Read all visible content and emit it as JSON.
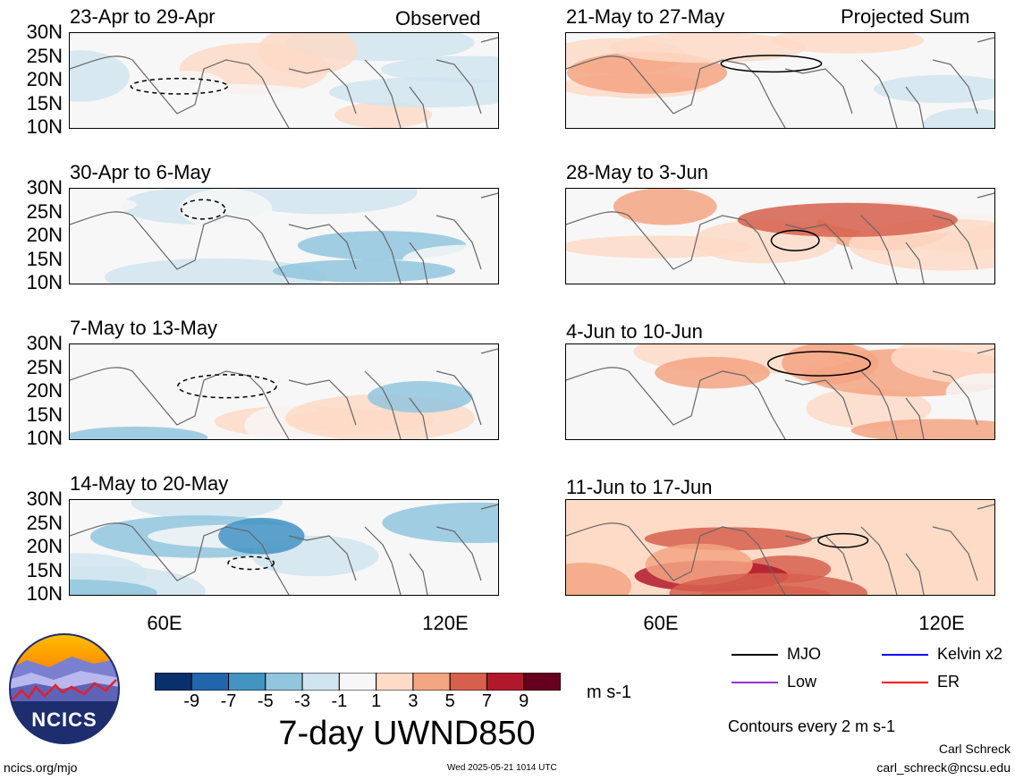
{
  "chart_data": {
    "type": "heatmap",
    "title": "7-day UWND850",
    "units": "m s-1",
    "contour_note": "Contours every 2 m s-1",
    "lat_ticks": [
      "30N",
      "25N",
      "20N",
      "15N",
      "10N"
    ],
    "lon_ticks": [
      "60E",
      "120E"
    ],
    "lat_range": [
      10,
      30
    ],
    "lon_range": [
      40,
      130
    ],
    "column_tags": {
      "observed": "Observed",
      "projected": "Projected Sum"
    },
    "colorbar": {
      "tick_labels": [
        "-9",
        "-7",
        "-5",
        "-3",
        "-1",
        "1",
        "3",
        "5",
        "7",
        "9"
      ],
      "colors": [
        "#08306b",
        "#2166ac",
        "#4393c3",
        "#92c5de",
        "#d1e5f0",
        "#f7f7f7",
        "#fddbc7",
        "#f4a582",
        "#d6604d",
        "#b2182b",
        "#67001f"
      ]
    },
    "panels": [
      {
        "id": "obs1",
        "title": "23-Apr to 29-Apr",
        "column": "observed",
        "mean_anomaly": -1
      },
      {
        "id": "obs2",
        "title": "30-Apr to 6-May",
        "column": "observed",
        "mean_anomaly": -1
      },
      {
        "id": "obs3",
        "title": "7-May to 13-May",
        "column": "observed",
        "mean_anomaly": -1
      },
      {
        "id": "obs4",
        "title": "14-May to 20-May",
        "column": "observed",
        "mean_anomaly": -3
      },
      {
        "id": "proj1",
        "title": "21-May to 27-May",
        "column": "projected",
        "mean_anomaly": 1
      },
      {
        "id": "proj2",
        "title": "28-May to 3-Jun",
        "column": "projected",
        "mean_anomaly": 3
      },
      {
        "id": "proj3",
        "title": "4-Jun to 10-Jun",
        "column": "projected",
        "mean_anomaly": 3
      },
      {
        "id": "proj4",
        "title": "11-Jun to 17-Jun",
        "column": "projected",
        "mean_anomaly": 5
      }
    ],
    "legend": [
      {
        "label": "MJO",
        "color": "#000000"
      },
      {
        "label": "Kelvin x2",
        "color": "#0000ff"
      },
      {
        "label": "Low",
        "color": "#9933cc"
      },
      {
        "label": "ER",
        "color": "#ff0000"
      }
    ]
  },
  "footer": {
    "logo_text": "NCICS",
    "site": "ncics.org/mjo",
    "timestamp": "Wed 2025-05-21 1014 UTC",
    "author": "Carl Schreck",
    "email": "carl_schreck@ncsu.edu"
  }
}
